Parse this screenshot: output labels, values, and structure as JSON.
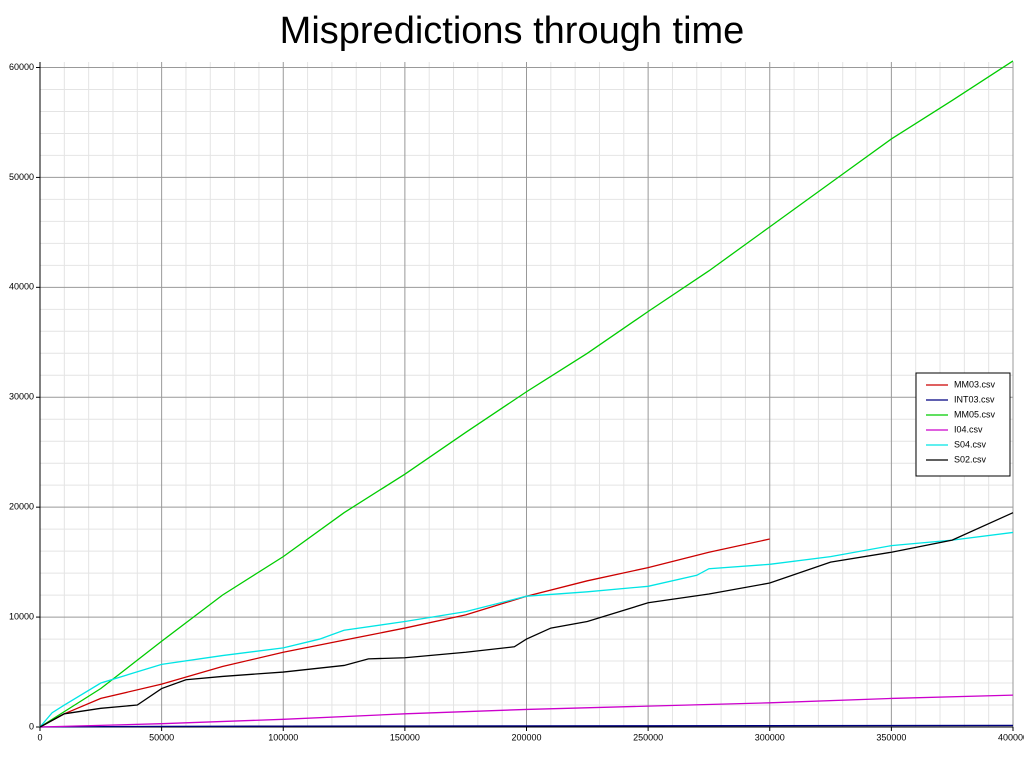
{
  "chart_data": {
    "type": "line",
    "title": "Mispredictions through time",
    "xlim": [
      0,
      400000
    ],
    "ylim": [
      0,
      60500
    ],
    "xticks": [
      0,
      50000,
      100000,
      150000,
      200000,
      250000,
      300000,
      350000,
      400000
    ],
    "yticks": [
      0,
      10000,
      20000,
      30000,
      40000,
      50000,
      60000
    ],
    "grid": true,
    "legend": "right",
    "series": [
      {
        "name": "MM03.csv",
        "color": "#cc0000",
        "x": [
          0,
          10000,
          25000,
          50000,
          75000,
          100000,
          125000,
          150000,
          175000,
          200000,
          225000,
          250000,
          275000,
          300000
        ],
        "values": [
          0,
          1200,
          2600,
          3900,
          5500,
          6800,
          7900,
          9000,
          10200,
          11900,
          13300,
          14500,
          15900,
          17100
        ]
      },
      {
        "name": "INT03.csv",
        "color": "#000080",
        "x": [
          0,
          50000,
          100000,
          150000,
          200000,
          250000,
          300000,
          350000,
          400000
        ],
        "values": [
          0,
          60,
          80,
          90,
          100,
          110,
          120,
          130,
          140
        ]
      },
      {
        "name": "MM05.csv",
        "color": "#00cc00",
        "x": [
          0,
          25000,
          50000,
          75000,
          100000,
          125000,
          150000,
          175000,
          200000,
          225000,
          250000,
          275000,
          300000,
          325000,
          350000,
          375000,
          400000
        ],
        "values": [
          0,
          3500,
          7800,
          12000,
          15500,
          19500,
          23000,
          26800,
          30500,
          34000,
          37800,
          41500,
          45500,
          49500,
          53500,
          57000,
          60600
        ]
      },
      {
        "name": "I04.csv",
        "color": "#cc00cc",
        "x": [
          0,
          50000,
          100000,
          150000,
          200000,
          250000,
          300000,
          350000,
          400000
        ],
        "values": [
          0,
          300,
          700,
          1200,
          1600,
          1900,
          2200,
          2600,
          2900
        ]
      },
      {
        "name": "S04.csv",
        "color": "#00e5e5",
        "x": [
          0,
          5000,
          10000,
          25000,
          50000,
          75000,
          100000,
          115000,
          125000,
          150000,
          175000,
          200000,
          225000,
          250000,
          270000,
          275000,
          300000,
          325000,
          350000,
          375000,
          400000
        ],
        "values": [
          0,
          1300,
          2000,
          4000,
          5700,
          6500,
          7200,
          8000,
          8800,
          9600,
          10500,
          11900,
          12300,
          12800,
          13800,
          14400,
          14800,
          15500,
          16500,
          17000,
          17700
        ]
      },
      {
        "name": "S02.csv",
        "color": "#000000",
        "x": [
          0,
          10000,
          25000,
          40000,
          50000,
          60000,
          75000,
          100000,
          125000,
          135000,
          150000,
          175000,
          195000,
          200000,
          210000,
          225000,
          250000,
          275000,
          300000,
          325000,
          350000,
          375000,
          400000
        ],
        "values": [
          0,
          1200,
          1700,
          2000,
          3500,
          4300,
          4600,
          5000,
          5600,
          6200,
          6300,
          6800,
          7300,
          8000,
          9000,
          9600,
          11300,
          12100,
          13100,
          15000,
          15900,
          17000,
          19500
        ]
      }
    ]
  }
}
